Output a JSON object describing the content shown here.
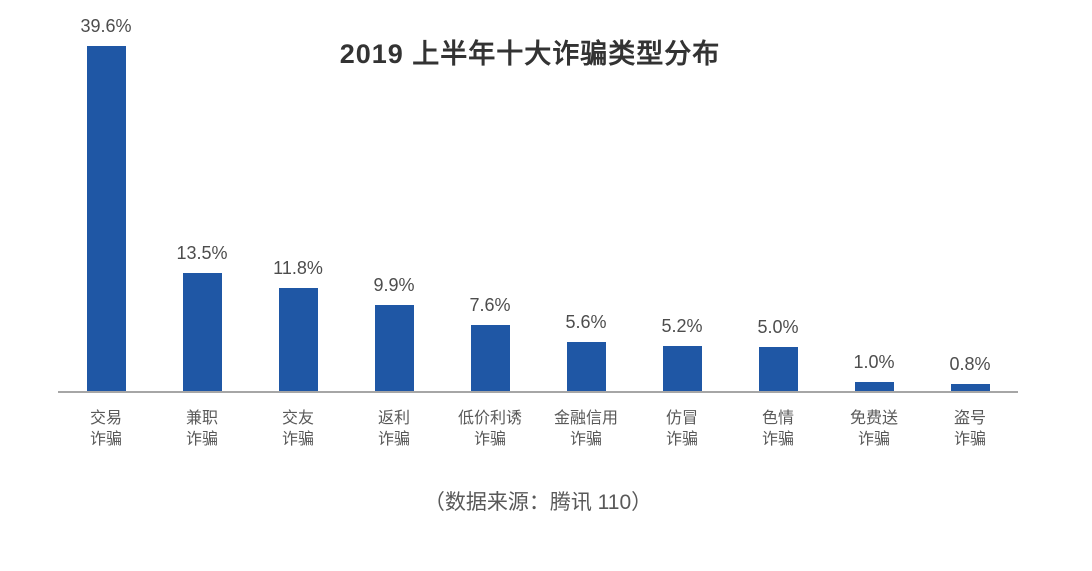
{
  "chart": {
    "title": "2019 上半年十大诈骗类型分布",
    "source_note": "（数据来源：腾讯 110）"
  },
  "colors": {
    "bar": "#1F57A5",
    "axis_line": "#A6A6A6",
    "title_text": "#333333",
    "value_text": "#4D4D4D",
    "category_text": "#595959"
  },
  "chart_data": {
    "type": "bar",
    "title": "2019 上半年十大诈骗类型分布",
    "source_note": "（数据来源：腾讯 110）",
    "categories": [
      "交易诈骗",
      "兼职诈骗",
      "交友诈骗",
      "返利诈骗",
      "低价利诱诈骗",
      "金融信用诈骗",
      "仿冒诈骗",
      "色情诈骗",
      "免费送诈骗",
      "盗号诈骗"
    ],
    "category_display_lines": [
      "交易\n诈骗",
      "兼职\n诈骗",
      "交友\n诈骗",
      "返利\n诈骗",
      "低价利诱\n诈骗",
      "金融信用\n诈骗",
      "仿冒\n诈骗",
      "色情\n诈骗",
      "免费送\n诈骗",
      "盗号\n诈骗"
    ],
    "values": [
      39.6,
      13.5,
      11.8,
      9.9,
      7.6,
      5.6,
      5.2,
      5.0,
      1.0,
      0.8
    ],
    "value_labels": [
      "39.6%",
      "13.5%",
      "11.8%",
      "9.9%",
      "7.6%",
      "5.6%",
      "5.2%",
      "5.0%",
      "1.0%",
      "0.8%"
    ],
    "xlabel": "",
    "ylabel": "",
    "ylim": [
      0,
      39.6
    ],
    "unit": "%",
    "grid": false,
    "legend": false,
    "bar_color": "#1F57A5"
  }
}
